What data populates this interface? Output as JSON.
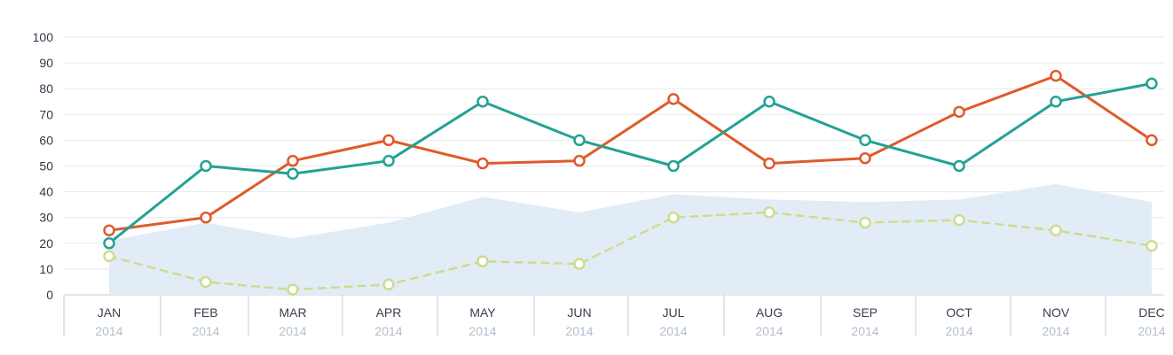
{
  "chart_data": {
    "type": "line",
    "categories": [
      "JAN",
      "FEB",
      "MAR",
      "APR",
      "MAY",
      "JUN",
      "JUL",
      "AUG",
      "SEP",
      "OCT",
      "NOV",
      "DEC"
    ],
    "category_sublabels": [
      "2014",
      "2014",
      "2014",
      "2014",
      "2014",
      "2014",
      "2014",
      "2014",
      "2014",
      "2014",
      "2014",
      "2014"
    ],
    "ylim": [
      0,
      100
    ],
    "yticks": [
      0,
      10,
      20,
      30,
      40,
      50,
      60,
      70,
      80,
      90,
      100
    ],
    "grid": true,
    "legend": "none",
    "series": [
      {
        "type": "area",
        "color": "#e2ecf7",
        "values": [
          21,
          28,
          22,
          28,
          38,
          32,
          39,
          37,
          36,
          37,
          43,
          36
        ]
      },
      {
        "type": "line",
        "color": "#e05a2b",
        "values": [
          25,
          30,
          52,
          60,
          51,
          52,
          76,
          51,
          53,
          71,
          85,
          60
        ]
      },
      {
        "type": "line",
        "color": "#22a293",
        "values": [
          20,
          50,
          47,
          52,
          75,
          60,
          50,
          75,
          60,
          50,
          75,
          82
        ]
      },
      {
        "type": "line",
        "dashed": true,
        "color": "#cddc8f",
        "values": [
          15,
          5,
          2,
          4,
          13,
          12,
          30,
          32,
          28,
          29,
          25,
          19
        ]
      }
    ],
    "colors": {
      "grid": "#e6e9ee",
      "axis": "#c5ccd6",
      "tick_label": "#33384a",
      "month_label": "#3a3f4f",
      "year_label": "#b3bfcc"
    }
  }
}
